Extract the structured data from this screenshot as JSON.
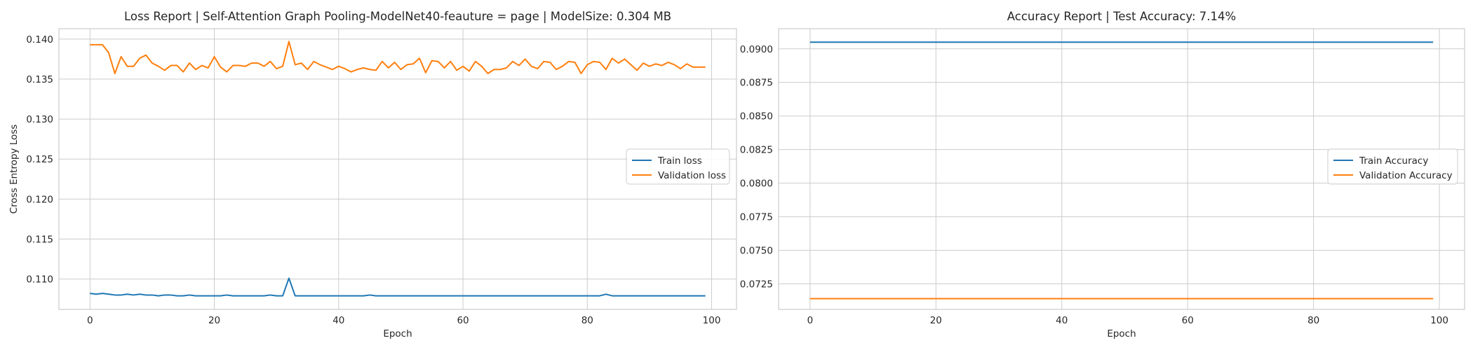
{
  "chart_data": [
    {
      "type": "line",
      "title": "Loss Report | Self-Attention Graph Pooling-ModelNet40-feauture = page | ModelSize: 0.304 MB",
      "xlabel": "Epoch",
      "ylabel": "Cross Entropy Loss",
      "xlim": [
        -5,
        104
      ],
      "ylim": [
        0.1062,
        0.1413
      ],
      "xticks": [
        0,
        20,
        40,
        60,
        80,
        100
      ],
      "yticks": [
        0.11,
        0.115,
        0.12,
        0.125,
        0.13,
        0.135,
        0.14
      ],
      "ytick_labels": [
        "0.110",
        "0.115",
        "0.120",
        "0.125",
        "0.130",
        "0.135",
        "0.140"
      ],
      "grid": true,
      "legend": "center-right",
      "series": [
        {
          "name": "Train loss",
          "color": "#1f77b4",
          "x": [
            0,
            1,
            2,
            3,
            4,
            5,
            6,
            7,
            8,
            9,
            10,
            11,
            12,
            13,
            14,
            15,
            16,
            17,
            18,
            19,
            20,
            21,
            22,
            23,
            24,
            25,
            26,
            27,
            28,
            29,
            30,
            31,
            32,
            33,
            34,
            35,
            36,
            37,
            38,
            39,
            40,
            41,
            42,
            43,
            44,
            45,
            46,
            47,
            48,
            49,
            50,
            51,
            52,
            53,
            54,
            55,
            56,
            57,
            58,
            59,
            60,
            61,
            62,
            63,
            64,
            65,
            66,
            67,
            68,
            69,
            70,
            71,
            72,
            73,
            74,
            75,
            76,
            77,
            78,
            79,
            80,
            81,
            82,
            83,
            84,
            85,
            86,
            87,
            88,
            89,
            90,
            91,
            92,
            93,
            94,
            95,
            96,
            97,
            98,
            99
          ],
          "y": [
            0.1082,
            0.1081,
            0.1082,
            0.1081,
            0.108,
            0.108,
            0.1081,
            0.108,
            0.1081,
            0.108,
            0.108,
            0.1079,
            0.108,
            0.108,
            0.1079,
            0.1079,
            0.108,
            0.1079,
            0.1079,
            0.1079,
            0.1079,
            0.1079,
            0.108,
            0.1079,
            0.1079,
            0.1079,
            0.1079,
            0.1079,
            0.1079,
            0.108,
            0.1079,
            0.1079,
            0.1101,
            0.1079,
            0.1079,
            0.1079,
            0.1079,
            0.1079,
            0.1079,
            0.1079,
            0.1079,
            0.1079,
            0.1079,
            0.1079,
            0.1079,
            0.108,
            0.1079,
            0.1079,
            0.1079,
            0.1079,
            0.1079,
            0.1079,
            0.1079,
            0.1079,
            0.1079,
            0.1079,
            0.1079,
            0.1079,
            0.1079,
            0.1079,
            0.1079,
            0.1079,
            0.1079,
            0.1079,
            0.1079,
            0.1079,
            0.1079,
            0.1079,
            0.1079,
            0.1079,
            0.1079,
            0.1079,
            0.1079,
            0.1079,
            0.1079,
            0.1079,
            0.1079,
            0.1079,
            0.1079,
            0.1079,
            0.1079,
            0.1079,
            0.1079,
            0.1081,
            0.1079,
            0.1079,
            0.1079,
            0.1079,
            0.1079,
            0.1079,
            0.1079,
            0.1079,
            0.1079,
            0.1079,
            0.1079,
            0.1079,
            0.1079,
            0.1079,
            0.1079,
            0.1079
          ]
        },
        {
          "name": "Validation loss",
          "color": "#ff7f0e",
          "x": [
            0,
            1,
            2,
            3,
            4,
            5,
            6,
            7,
            8,
            9,
            10,
            11,
            12,
            13,
            14,
            15,
            16,
            17,
            18,
            19,
            20,
            21,
            22,
            23,
            24,
            25,
            26,
            27,
            28,
            29,
            30,
            31,
            32,
            33,
            34,
            35,
            36,
            37,
            38,
            39,
            40,
            41,
            42,
            43,
            44,
            45,
            46,
            47,
            48,
            49,
            50,
            51,
            52,
            53,
            54,
            55,
            56,
            57,
            58,
            59,
            60,
            61,
            62,
            63,
            64,
            65,
            66,
            67,
            68,
            69,
            70,
            71,
            72,
            73,
            74,
            75,
            76,
            77,
            78,
            79,
            80,
            81,
            82,
            83,
            84,
            85,
            86,
            87,
            88,
            89,
            90,
            91,
            92,
            93,
            94,
            95,
            96,
            97,
            98,
            99
          ],
          "y": [
            0.1393,
            0.1393,
            0.1393,
            0.1383,
            0.1357,
            0.1378,
            0.1366,
            0.1366,
            0.1376,
            0.138,
            0.137,
            0.1366,
            0.1361,
            0.1367,
            0.1367,
            0.1359,
            0.137,
            0.1362,
            0.1367,
            0.1364,
            0.1378,
            0.1365,
            0.1359,
            0.1367,
            0.1367,
            0.1366,
            0.137,
            0.137,
            0.1366,
            0.1372,
            0.1363,
            0.1366,
            0.1397,
            0.1368,
            0.137,
            0.1362,
            0.1372,
            0.1368,
            0.1365,
            0.1362,
            0.1366,
            0.1363,
            0.1359,
            0.1362,
            0.1364,
            0.1362,
            0.1361,
            0.1372,
            0.1364,
            0.1371,
            0.1362,
            0.1368,
            0.1369,
            0.1376,
            0.1358,
            0.1373,
            0.1372,
            0.1364,
            0.1372,
            0.1361,
            0.1366,
            0.136,
            0.1372,
            0.1366,
            0.1357,
            0.1362,
            0.1362,
            0.1364,
            0.1372,
            0.1367,
            0.1375,
            0.1366,
            0.1363,
            0.1372,
            0.1371,
            0.1362,
            0.1366,
            0.1372,
            0.1371,
            0.1357,
            0.1368,
            0.1372,
            0.1371,
            0.1362,
            0.1376,
            0.137,
            0.1375,
            0.1368,
            0.1361,
            0.137,
            0.1366,
            0.1369,
            0.1367,
            0.1371,
            0.1368,
            0.1363,
            0.1369,
            0.1365,
            0.1365,
            0.1365
          ]
        }
      ]
    },
    {
      "type": "line",
      "title": "Accuracy Report | Test Accuracy: 7.14%",
      "xlabel": "Epoch",
      "ylabel": "",
      "xlim": [
        -5,
        104
      ],
      "ylim": [
        0.0706,
        0.0915
      ],
      "xticks": [
        0,
        20,
        40,
        60,
        80,
        100
      ],
      "yticks": [
        0.0725,
        0.075,
        0.0775,
        0.08,
        0.0825,
        0.085,
        0.0875,
        0.09
      ],
      "ytick_labels": [
        "0.0725",
        "0.0750",
        "0.0775",
        "0.0800",
        "0.0825",
        "0.0850",
        "0.0875",
        "0.0900"
      ],
      "grid": true,
      "legend": "center-right",
      "series": [
        {
          "name": "Train Accuracy",
          "color": "#1f77b4",
          "x": [
            0,
            99
          ],
          "y": [
            0.0905,
            0.0905
          ]
        },
        {
          "name": "Validation Accuracy",
          "color": "#ff7f0e",
          "x": [
            0,
            99
          ],
          "y": [
            0.0714,
            0.0714
          ]
        }
      ]
    }
  ]
}
